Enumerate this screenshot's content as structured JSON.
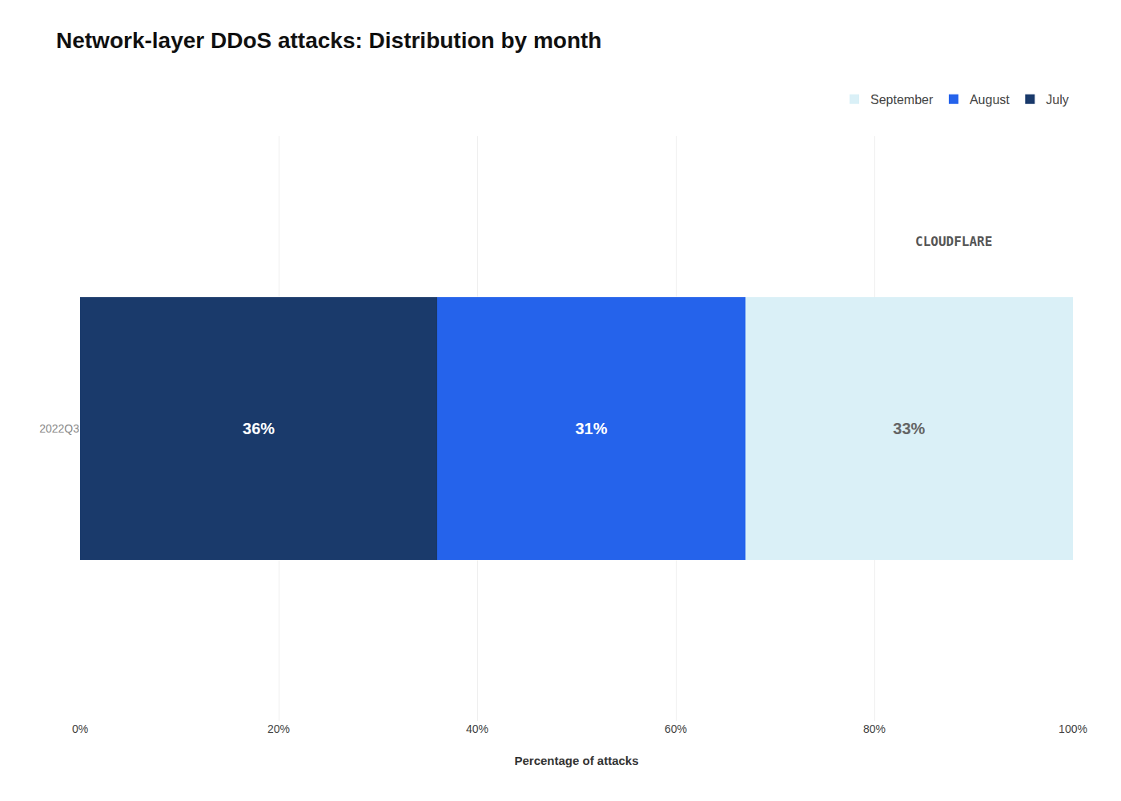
{
  "chart_data": {
    "type": "bar",
    "orientation": "horizontal",
    "stacked": true,
    "title": "Network-layer DDoS attacks: Distribution by month",
    "xlabel": "Percentage of attacks",
    "categories": [
      "2022Q3"
    ],
    "series": [
      {
        "name": "July",
        "color": "#1a3a6b",
        "values": [
          36
        ],
        "value_labels": [
          "36%"
        ]
      },
      {
        "name": "August",
        "color": "#2563eb",
        "values": [
          31
        ],
        "value_labels": [
          "31%"
        ]
      },
      {
        "name": "September",
        "color": "#daf0f7",
        "values": [
          33
        ],
        "value_labels": [
          "33%"
        ]
      }
    ],
    "data_labels": true,
    "xlim": [
      0,
      100
    ],
    "xticks": [
      {
        "value": 0,
        "label": "0%"
      },
      {
        "value": 20,
        "label": "20%"
      },
      {
        "value": 40,
        "label": "40%"
      },
      {
        "value": 60,
        "label": "60%"
      },
      {
        "value": 80,
        "label": "80%"
      },
      {
        "value": 100,
        "label": "100%"
      }
    ],
    "grid": true,
    "legend": "upper right",
    "annotations": [
      "CLOUDFLARE"
    ]
  }
}
